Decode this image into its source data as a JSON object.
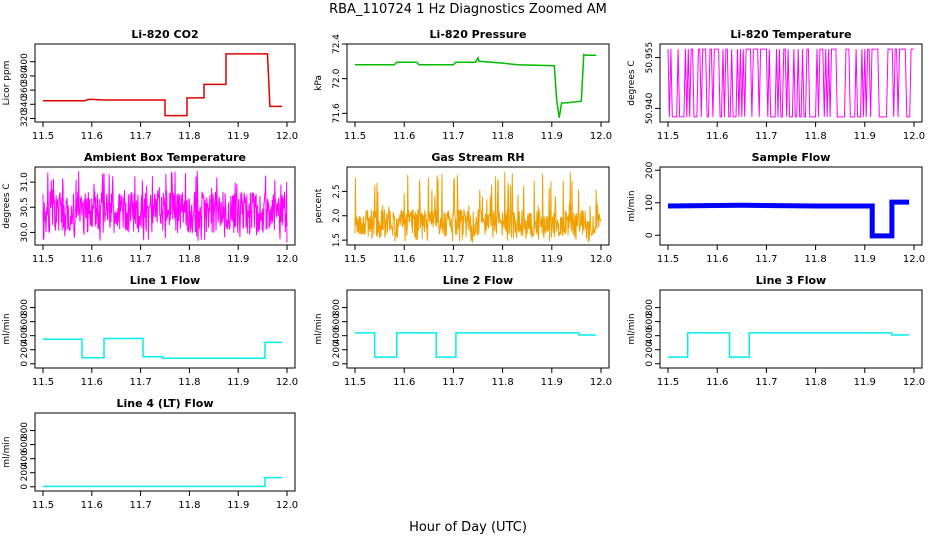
{
  "page_title": "RBA_110724  1 Hz Diagnostics Zoomed AM",
  "x_axis_label": "Hour of Day (UTC)",
  "chart_data": [
    {
      "id": "co2",
      "type": "line",
      "title": "Li-820 CO2",
      "ylabel": "Licor ppm",
      "color": "#e00000",
      "line_style": "step",
      "xlim": [
        11.5,
        12.0
      ],
      "ylim": [
        315,
        425
      ],
      "x_ticks": [
        "11.5",
        "11.6",
        "11.7",
        "11.8",
        "11.9",
        "12.0"
      ],
      "y_ticks": [
        "320",
        "340",
        "360",
        "380",
        "400"
      ],
      "series": [
        {
          "name": "CO2",
          "x": [
            11.5,
            11.585,
            11.595,
            11.625,
            11.75,
            11.75,
            11.795,
            11.795,
            11.83,
            11.83,
            11.875,
            11.875,
            11.96,
            11.965,
            11.99
          ],
          "y": [
            345,
            345,
            347,
            346,
            346,
            324,
            324,
            349,
            349,
            368,
            368,
            411,
            411,
            337,
            337
          ]
        }
      ]
    },
    {
      "id": "pressure",
      "type": "line",
      "title": "Li-820 Pressure",
      "ylabel": "kPa",
      "color": "#00bb00",
      "line_style": "step",
      "xlim": [
        11.5,
        12.0
      ],
      "ylim": [
        71.5,
        72.4
      ],
      "x_ticks": [
        "11.5",
        "11.6",
        "11.7",
        "11.8",
        "11.9",
        "12.0"
      ],
      "y_ticks": [
        "71.6",
        "72.0",
        "72.4"
      ],
      "series": [
        {
          "name": "Pressure",
          "x": [
            11.5,
            11.58,
            11.585,
            11.625,
            11.63,
            11.7,
            11.705,
            11.745,
            11.75,
            11.752,
            11.8,
            11.83,
            11.905,
            11.91,
            11.915,
            11.92,
            11.93,
            11.96,
            11.965,
            11.97,
            11.99
          ],
          "y": [
            72.16,
            72.16,
            72.19,
            72.19,
            72.16,
            72.16,
            72.19,
            72.19,
            72.24,
            72.2,
            72.18,
            72.16,
            72.15,
            71.75,
            71.55,
            71.72,
            71.72,
            71.74,
            72.28,
            72.27,
            72.27
          ]
        }
      ]
    },
    {
      "id": "licor_temp",
      "type": "line",
      "title": "Li-820 Temperature",
      "ylabel": "degrees C",
      "color": "#ff00ff",
      "line_style": "dense",
      "xlim": [
        11.5,
        12.0
      ],
      "ylim": [
        50.936,
        50.959
      ],
      "x_ticks": [
        "11.5",
        "11.6",
        "11.7",
        "11.8",
        "11.9",
        "12.0"
      ],
      "y_ticks": [
        "50.940",
        "50.955"
      ],
      "series": [
        {
          "name": "Temperature",
          "x_start": 11.5,
          "x_end": 12.0,
          "low": 50.9375,
          "high": 50.9575,
          "note": "quantized flicker between two levels"
        }
      ]
    },
    {
      "id": "box_temp",
      "type": "line",
      "title": "Ambient Box Temperature",
      "ylabel": "degrees C",
      "color": "#ff00ff",
      "line_style": "noise",
      "xlim": [
        11.5,
        12.0
      ],
      "ylim": [
        29.75,
        31.3
      ],
      "x_ticks": [
        "11.5",
        "11.6",
        "11.7",
        "11.8",
        "11.9",
        "12.0"
      ],
      "y_ticks": [
        "30.0",
        "30.5",
        "31.0"
      ],
      "series": [
        {
          "name": "Box temperature",
          "x_start": 11.5,
          "x_end": 12.0,
          "mean": 30.4,
          "min": 29.8,
          "max": 31.25
        }
      ]
    },
    {
      "id": "rh",
      "type": "line",
      "title": "Gas Stream RH",
      "ylabel": "percent",
      "color": "#f0a000",
      "line_style": "noise",
      "xlim": [
        11.5,
        12.0
      ],
      "ylim": [
        1.4,
        3.0
      ],
      "x_ticks": [
        "11.5",
        "11.6",
        "11.7",
        "11.8",
        "11.9",
        "12.0"
      ],
      "y_ticks": [
        "1.5",
        "2.0",
        "2.5"
      ],
      "series": [
        {
          "name": "RH",
          "x_start": 11.5,
          "x_end": 12.0,
          "mean": 1.85,
          "min": 1.45,
          "max": 2.9
        }
      ]
    },
    {
      "id": "sample_flow",
      "type": "line",
      "title": "Sample Flow",
      "ylabel": "ml/min",
      "color": "#0000ff",
      "line_style": "thick",
      "xlim": [
        11.5,
        12.0
      ],
      "ylim": [
        -30,
        210
      ],
      "x_ticks": [
        "11.5",
        "11.6",
        "11.7",
        "11.8",
        "11.9",
        "12.0"
      ],
      "y_ticks": [
        "0",
        "100",
        "200"
      ],
      "series": [
        {
          "name": "Sample flow",
          "x": [
            11.5,
            11.65,
            11.8,
            11.915,
            11.915,
            11.955,
            11.955,
            11.99
          ],
          "y": [
            90,
            92,
            90,
            90,
            -2,
            -2,
            102,
            102
          ]
        }
      ]
    },
    {
      "id": "line1",
      "type": "line",
      "title": "Line 1 Flow",
      "ylabel": "ml/min",
      "color": "#00eeee",
      "line_style": "step",
      "xlim": [
        11.5,
        12.0
      ],
      "ylim": [
        -60,
        1050
      ],
      "x_ticks": [
        "11.5",
        "11.6",
        "11.7",
        "11.8",
        "11.9",
        "12.0"
      ],
      "y_ticks": [
        "0",
        "200",
        "400",
        "600",
        "800"
      ],
      "series": [
        {
          "name": "Line 1",
          "x": [
            11.5,
            11.58,
            11.58,
            11.625,
            11.625,
            11.705,
            11.705,
            11.745,
            11.745,
            11.955,
            11.955,
            11.99
          ],
          "y": [
            350,
            350,
            85,
            85,
            360,
            360,
            100,
            100,
            80,
            80,
            305,
            305
          ]
        }
      ]
    },
    {
      "id": "line2",
      "type": "line",
      "title": "Line 2 Flow",
      "ylabel": "ml/min",
      "color": "#00eeee",
      "line_style": "step",
      "xlim": [
        11.5,
        12.0
      ],
      "ylim": [
        -60,
        1050
      ],
      "x_ticks": [
        "11.5",
        "11.6",
        "11.7",
        "11.8",
        "11.9",
        "12.0"
      ],
      "y_ticks": [
        "0",
        "200",
        "400",
        "600",
        "800"
      ],
      "series": [
        {
          "name": "Line 2",
          "x": [
            11.5,
            11.54,
            11.54,
            11.585,
            11.585,
            11.665,
            11.665,
            11.705,
            11.705,
            11.955,
            11.955,
            11.99
          ],
          "y": [
            440,
            440,
            95,
            95,
            440,
            440,
            95,
            95,
            440,
            440,
            410,
            410
          ]
        }
      ]
    },
    {
      "id": "line3",
      "type": "line",
      "title": "Line 3 Flow",
      "ylabel": "ml/min",
      "color": "#00eeee",
      "line_style": "step",
      "xlim": [
        11.5,
        12.0
      ],
      "ylim": [
        -60,
        1050
      ],
      "x_ticks": [
        "11.5",
        "11.6",
        "11.7",
        "11.8",
        "11.9",
        "12.0"
      ],
      "y_ticks": [
        "0",
        "200",
        "400",
        "600",
        "800"
      ],
      "series": [
        {
          "name": "Line 3",
          "x": [
            11.5,
            11.54,
            11.54,
            11.625,
            11.625,
            11.665,
            11.665,
            11.955,
            11.955,
            11.99
          ],
          "y": [
            95,
            95,
            440,
            440,
            95,
            95,
            440,
            440,
            410,
            410
          ]
        }
      ]
    },
    {
      "id": "line4",
      "type": "line",
      "title": "Line 4 (LT) Flow",
      "ylabel": "ml/min",
      "color": "#00eeee",
      "line_style": "step",
      "xlim": [
        11.5,
        12.0
      ],
      "ylim": [
        -60,
        1050
      ],
      "x_ticks": [
        "11.5",
        "11.6",
        "11.7",
        "11.8",
        "11.9",
        "12.0"
      ],
      "y_ticks": [
        "0",
        "200",
        "400",
        "600",
        "800"
      ],
      "series": [
        {
          "name": "Line 4",
          "x": [
            11.5,
            11.955,
            11.955,
            11.99
          ],
          "y": [
            5,
            5,
            130,
            130
          ]
        }
      ]
    }
  ]
}
